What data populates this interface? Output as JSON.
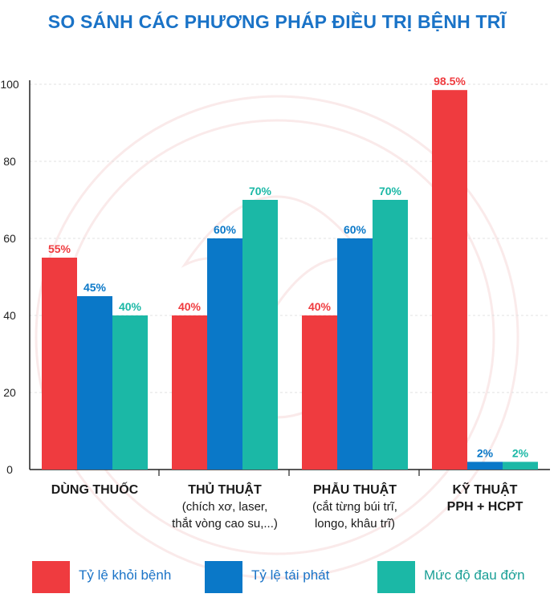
{
  "chart_data": {
    "type": "bar",
    "title": "SO SÁNH CÁC PHƯƠNG PHÁP ĐIỀU TRỊ BỆNH TRĨ",
    "categories": [
      [
        "DÙNG THUỐC"
      ],
      [
        "THỦ THUẬT",
        "(chích xơ, laser,",
        "thắt vòng cao su,...)"
      ],
      [
        "PHẪU THUẬT",
        "(cắt từng búi trĩ,",
        "longo, khâu trĩ)"
      ],
      [
        "KỸ THUẬT",
        "PPH + HCPT"
      ]
    ],
    "series": [
      {
        "name": "Tỷ lệ khỏi bệnh",
        "color": "#ef3b3f",
        "values": [
          55,
          40,
          40,
          98.5
        ],
        "labels": [
          "55%",
          "40%",
          "40%",
          "98.5%"
        ]
      },
      {
        "name": "Tỷ lệ tái phát",
        "color": "#0a78c8",
        "values": [
          45,
          60,
          60,
          2
        ],
        "labels": [
          "45%",
          "60%",
          "60%",
          "2%"
        ]
      },
      {
        "name": "Mức độ đau đớn",
        "color": "#1bb8a6",
        "values": [
          40,
          70,
          70,
          2
        ],
        "labels": [
          "40%",
          "70%",
          "70%",
          "2%"
        ]
      }
    ],
    "ylim": [
      0,
      100
    ],
    "yticks": [
      0,
      20,
      40,
      60,
      80,
      100
    ],
    "xlabel": "",
    "ylabel": "",
    "grid": true,
    "legend_position": "bottom"
  }
}
